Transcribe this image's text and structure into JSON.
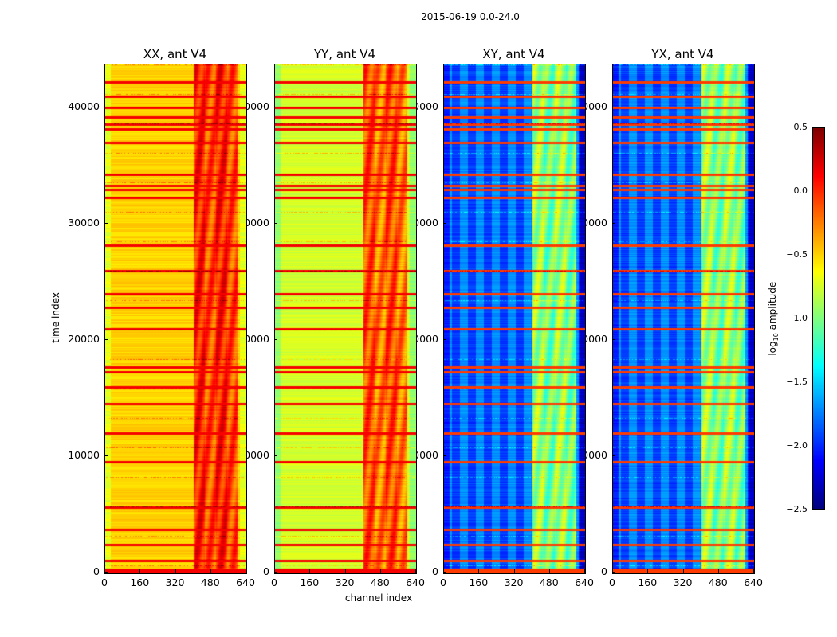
{
  "chart_data": {
    "type": "heatmap",
    "title": "2015-06-19 0.0-24.0",
    "xlabel": "channel index",
    "ylabel": "time index",
    "xlim": [
      0,
      640
    ],
    "ylim": [
      0,
      43700
    ],
    "xticks": [
      "0",
      "160",
      "320",
      "480",
      "640"
    ],
    "yticks": [
      "0",
      "10000",
      "20000",
      "30000",
      "40000"
    ],
    "panels": [
      {
        "title": "XX, ant V4",
        "base_level": -0.5,
        "band_level": 0.05,
        "edge_level": -0.7
      },
      {
        "title": "YY, ant V4",
        "base_level": -0.75,
        "band_level": -0.1,
        "edge_level": -0.95
      },
      {
        "title": "XY, ant V4",
        "base_level": -1.95,
        "band_level": -0.9,
        "edge_level": -2.3
      },
      {
        "title": "YX, ant V4",
        "base_level": -1.95,
        "band_level": -0.9,
        "edge_level": -2.3
      }
    ],
    "high_channel_band": [
      400,
      600
    ],
    "flagged_time_rows": [
      100,
      300,
      1000,
      2400,
      3700,
      5600,
      9500,
      12000,
      14500,
      16000,
      17300,
      17700,
      21000,
      22800,
      24000,
      26000,
      28200,
      32300,
      33000,
      33300,
      34300,
      37000,
      38200,
      38600,
      39200,
      40000,
      41000,
      42200
    ],
    "colorbar": {
      "label": "log10 amplitude",
      "label_base": "log",
      "label_sub": "10",
      "label_rest": " amplitude",
      "range": [
        -2.5,
        0.5
      ],
      "ticks": [
        "0.5",
        "0.0",
        "−0.5",
        "−1.0",
        "−1.5",
        "−2.0",
        "−2.5"
      ],
      "colormap": "jet"
    }
  }
}
